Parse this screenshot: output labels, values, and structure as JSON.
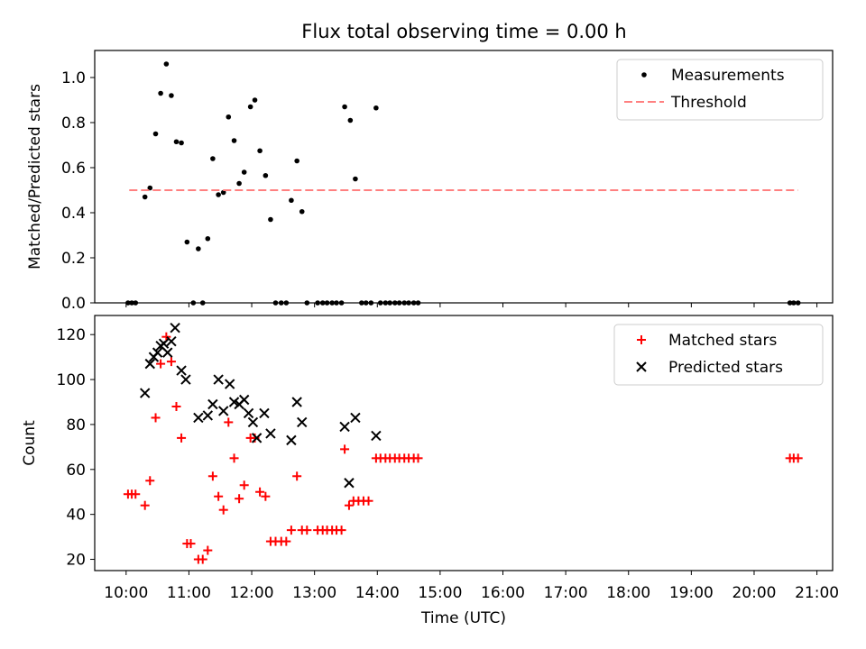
{
  "title": "Flux total observing time = 0.00 h",
  "colors": {
    "measurements": "#000000",
    "threshold": "#ff8080",
    "matched": "#ff0000",
    "predicted": "#000000"
  },
  "chart_data": [
    {
      "type": "scatter",
      "title": "Flux total observing time = 0.00 h",
      "xlabel": "",
      "ylabel": "Matched/Predicted stars",
      "xlim": [
        9.5,
        21.25
      ],
      "ylim": [
        0,
        1.12
      ],
      "yticks": [
        0.0,
        0.2,
        0.4,
        0.6,
        0.8,
        1.0
      ],
      "yticklabels": [
        "0.0",
        "0.2",
        "0.4",
        "0.6",
        "0.8",
        "1.0"
      ],
      "legend_position": "top-right",
      "series": [
        {
          "name": "Measurements",
          "marker": "dot",
          "color": "#000000",
          "points": [
            [
              10.03,
              0
            ],
            [
              10.09,
              0
            ],
            [
              10.15,
              0
            ],
            [
              10.3,
              0.47
            ],
            [
              10.38,
              0.51
            ],
            [
              10.47,
              0.75
            ],
            [
              10.55,
              0.93
            ],
            [
              10.64,
              1.06
            ],
            [
              10.72,
              0.92
            ],
            [
              10.8,
              0.715
            ],
            [
              10.88,
              0.71
            ],
            [
              10.97,
              0.27
            ],
            [
              11.07,
              0
            ],
            [
              11.15,
              0.24
            ],
            [
              11.22,
              0
            ],
            [
              11.3,
              0.285
            ],
            [
              11.38,
              0.64
            ],
            [
              11.47,
              0.48
            ],
            [
              11.55,
              0.49
            ],
            [
              11.63,
              0.825
            ],
            [
              11.72,
              0.72
            ],
            [
              11.8,
              0.53
            ],
            [
              11.88,
              0.58
            ],
            [
              11.98,
              0.87
            ],
            [
              12.05,
              0.9
            ],
            [
              12.13,
              0.675
            ],
            [
              12.22,
              0.565
            ],
            [
              12.3,
              0.37
            ],
            [
              12.38,
              0
            ],
            [
              12.47,
              0
            ],
            [
              12.55,
              0
            ],
            [
              12.63,
              0.455
            ],
            [
              12.72,
              0.63
            ],
            [
              12.8,
              0.405
            ],
            [
              12.88,
              0
            ],
            [
              13.05,
              0
            ],
            [
              13.13,
              0
            ],
            [
              13.2,
              0
            ],
            [
              13.28,
              0
            ],
            [
              13.35,
              0
            ],
            [
              13.43,
              0
            ],
            [
              13.48,
              0.87
            ],
            [
              13.57,
              0.81
            ],
            [
              13.65,
              0.55
            ],
            [
              13.75,
              0
            ],
            [
              13.82,
              0
            ],
            [
              13.9,
              0
            ],
            [
              13.98,
              0.865
            ],
            [
              14.05,
              0
            ],
            [
              14.13,
              0
            ],
            [
              14.2,
              0
            ],
            [
              14.28,
              0
            ],
            [
              14.35,
              0
            ],
            [
              14.43,
              0
            ],
            [
              14.5,
              0
            ],
            [
              14.58,
              0
            ],
            [
              14.65,
              0
            ],
            [
              20.57,
              0
            ],
            [
              20.63,
              0
            ],
            [
              20.7,
              0
            ]
          ]
        },
        {
          "name": "Threshold",
          "marker": "dashed-line",
          "color": "#ff8080",
          "points": [
            [
              10.05,
              0.5
            ],
            [
              20.7,
              0.5
            ]
          ]
        }
      ]
    },
    {
      "type": "scatter",
      "title": "",
      "xlabel": "Time (UTC)",
      "ylabel": "Count",
      "xlim": [
        9.5,
        21.25
      ],
      "ylim": [
        15,
        128.5
      ],
      "yticks": [
        20,
        40,
        60,
        80,
        100,
        120
      ],
      "yticklabels": [
        "20",
        "40",
        "60",
        "80",
        "100",
        "120"
      ],
      "xticks": [
        10,
        11,
        12,
        13,
        14,
        15,
        16,
        17,
        18,
        19,
        20,
        21
      ],
      "xticklabels": [
        "10:00",
        "11:00",
        "12:00",
        "13:00",
        "14:00",
        "15:00",
        "16:00",
        "17:00",
        "18:00",
        "19:00",
        "20:00",
        "21:00"
      ],
      "legend_position": "top-right",
      "series": [
        {
          "name": "Matched stars",
          "marker": "plus",
          "color": "#ff0000",
          "points": [
            [
              10.03,
              49
            ],
            [
              10.09,
              49
            ],
            [
              10.15,
              49
            ],
            [
              10.3,
              44
            ],
            [
              10.38,
              55
            ],
            [
              10.47,
              83
            ],
            [
              10.55,
              107
            ],
            [
              10.64,
              119
            ],
            [
              10.72,
              108
            ],
            [
              10.8,
              88
            ],
            [
              10.88,
              74
            ],
            [
              10.97,
              27
            ],
            [
              11.03,
              27
            ],
            [
              11.15,
              20
            ],
            [
              11.22,
              20
            ],
            [
              11.3,
              24
            ],
            [
              11.38,
              57
            ],
            [
              11.47,
              48
            ],
            [
              11.55,
              42
            ],
            [
              11.63,
              81
            ],
            [
              11.72,
              65
            ],
            [
              11.8,
              47
            ],
            [
              11.88,
              53
            ],
            [
              11.98,
              74
            ],
            [
              12.05,
              74
            ],
            [
              12.13,
              50
            ],
            [
              12.22,
              48
            ],
            [
              12.3,
              28
            ],
            [
              12.38,
              28
            ],
            [
              12.47,
              28
            ],
            [
              12.55,
              28
            ],
            [
              12.63,
              33
            ],
            [
              12.72,
              57
            ],
            [
              12.8,
              33
            ],
            [
              12.88,
              33
            ],
            [
              13.05,
              33
            ],
            [
              13.13,
              33
            ],
            [
              13.2,
              33
            ],
            [
              13.28,
              33
            ],
            [
              13.35,
              33
            ],
            [
              13.43,
              33
            ],
            [
              13.48,
              69
            ],
            [
              13.55,
              44
            ],
            [
              13.62,
              46
            ],
            [
              13.7,
              46
            ],
            [
              13.78,
              46
            ],
            [
              13.86,
              46
            ],
            [
              13.98,
              65
            ],
            [
              14.05,
              65
            ],
            [
              14.13,
              65
            ],
            [
              14.2,
              65
            ],
            [
              14.28,
              65
            ],
            [
              14.35,
              65
            ],
            [
              14.43,
              65
            ],
            [
              14.5,
              65
            ],
            [
              14.58,
              65
            ],
            [
              14.65,
              65
            ],
            [
              20.57,
              65
            ],
            [
              20.63,
              65
            ],
            [
              20.7,
              65
            ]
          ]
        },
        {
          "name": "Predicted stars",
          "marker": "x",
          "color": "#000000",
          "points": [
            [
              10.3,
              94
            ],
            [
              10.38,
              107
            ],
            [
              10.44,
              110
            ],
            [
              10.5,
              112
            ],
            [
              10.55,
              115
            ],
            [
              10.6,
              116
            ],
            [
              10.66,
              112
            ],
            [
              10.72,
              117
            ],
            [
              10.78,
              123
            ],
            [
              10.88,
              104
            ],
            [
              10.95,
              100
            ],
            [
              11.15,
              83
            ],
            [
              11.3,
              84
            ],
            [
              11.38,
              89
            ],
            [
              11.47,
              100
            ],
            [
              11.55,
              86
            ],
            [
              11.65,
              98
            ],
            [
              11.72,
              90
            ],
            [
              11.8,
              89
            ],
            [
              11.88,
              91
            ],
            [
              11.95,
              85
            ],
            [
              12.02,
              81
            ],
            [
              12.08,
              74
            ],
            [
              12.2,
              85
            ],
            [
              12.3,
              76
            ],
            [
              12.63,
              73
            ],
            [
              12.72,
              90
            ],
            [
              12.8,
              81
            ],
            [
              13.48,
              79
            ],
            [
              13.55,
              54
            ],
            [
              13.65,
              83
            ],
            [
              13.98,
              75
            ]
          ]
        }
      ]
    }
  ]
}
